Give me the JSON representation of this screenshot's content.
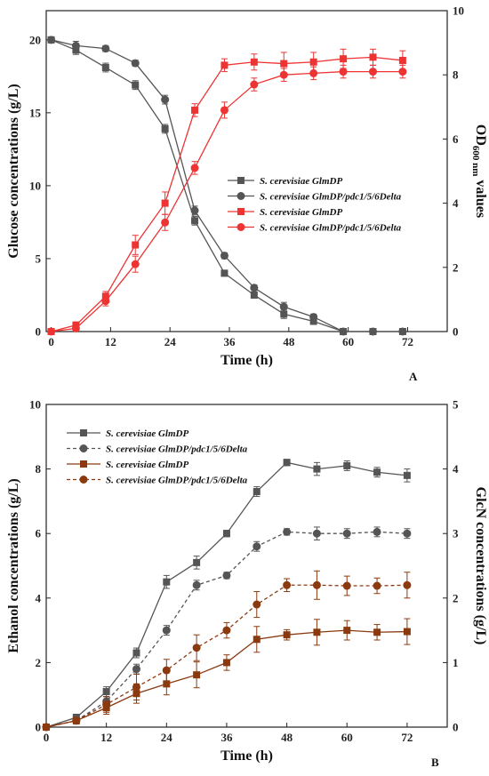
{
  "chart_data": [
    {
      "type": "line",
      "panel_label": "A",
      "xlabel": "Time (h)",
      "ylabel": "Glucose concentrations (g/L)",
      "y2label_pre": "OD",
      "y2label_sub": "600 nm",
      "y2label_post": " values",
      "xlim": [
        -1,
        80
      ],
      "ylim": [
        0,
        22
      ],
      "y2lim": [
        0,
        10
      ],
      "xticks": [
        0,
        12,
        24,
        36,
        48,
        60,
        72
      ],
      "yticks": [
        0,
        5,
        10,
        15,
        20
      ],
      "y2ticks": [
        0,
        2,
        4,
        6,
        8,
        10
      ],
      "legend_position": "center-right",
      "series": [
        {
          "name": "S. cerevisiae GlmDP",
          "axis": "left",
          "color": "#555555",
          "marker": "square",
          "dash": false,
          "x": [
            0,
            5,
            11,
            17,
            23,
            29,
            35,
            41,
            47,
            53,
            59,
            65,
            71
          ],
          "y": [
            20,
            19.3,
            18.1,
            16.9,
            13.9,
            7.6,
            4.0,
            2.5,
            1.2,
            0.7,
            0,
            0,
            0
          ],
          "err": [
            0.2,
            0.3,
            0.3,
            0.3,
            0.3,
            0.3,
            0.2,
            0.2,
            0.3,
            0.2,
            0,
            0,
            0
          ]
        },
        {
          "name": "S. cerevisiae GlmDP/pdc1/5/6Delta",
          "axis": "left",
          "color": "#555555",
          "marker": "circle",
          "dash": false,
          "x": [
            0,
            5,
            11,
            17,
            23,
            29,
            35,
            41,
            47,
            53,
            59,
            65,
            71
          ],
          "y": [
            20,
            19.6,
            19.4,
            18.4,
            15.9,
            8.3,
            5.2,
            3.0,
            1.7,
            1.0,
            0,
            0,
            0
          ],
          "err": [
            0.2,
            0.3,
            0.2,
            0.2,
            0.3,
            0.3,
            0.2,
            0.2,
            0.3,
            0.2,
            0,
            0,
            0
          ]
        },
        {
          "name": "S. cerevisiae GlmDP",
          "axis": "right",
          "color": "#ee3333",
          "marker": "square",
          "dash": false,
          "x": [
            0,
            5,
            11,
            17,
            23,
            29,
            35,
            41,
            47,
            53,
            59,
            65,
            71
          ],
          "y": [
            0,
            0.2,
            1.1,
            2.7,
            4.0,
            6.9,
            8.3,
            8.4,
            8.35,
            8.4,
            8.5,
            8.55,
            8.45
          ],
          "err": [
            0,
            0.1,
            0.15,
            0.3,
            0.35,
            0.2,
            0.2,
            0.25,
            0.35,
            0.3,
            0.3,
            0.25,
            0.3
          ]
        },
        {
          "name": "S. cerevisiae GlmDP/pdc1/5/6Delta",
          "axis": "right",
          "color": "#ee3333",
          "marker": "circle",
          "dash": false,
          "x": [
            0,
            5,
            11,
            17,
            23,
            29,
            35,
            41,
            47,
            53,
            59,
            65,
            71
          ],
          "y": [
            0,
            0.1,
            0.95,
            2.1,
            3.4,
            5.1,
            6.9,
            7.7,
            8.0,
            8.05,
            8.1,
            8.1,
            8.1
          ],
          "err": [
            0,
            0.05,
            0.15,
            0.25,
            0.25,
            0.2,
            0.25,
            0.2,
            0.2,
            0.2,
            0.2,
            0.2,
            0.2
          ]
        }
      ]
    },
    {
      "type": "line",
      "panel_label": "B",
      "xlabel": "Time (h)",
      "ylabel": "Ethanol concentrations (g/L)",
      "y2label": "GlcN concentrations (g/L)",
      "xlim": [
        0,
        80
      ],
      "ylim": [
        0,
        10
      ],
      "y2lim": [
        0,
        5
      ],
      "xticks": [
        0,
        12,
        24,
        36,
        48,
        60,
        72
      ],
      "yticks": [
        0,
        2,
        4,
        6,
        8,
        10
      ],
      "y2ticks": [
        0,
        1,
        2,
        3,
        4,
        5
      ],
      "legend_position": "top-left",
      "series": [
        {
          "name": "S. cerevisiae GlmDP",
          "axis": "left",
          "color": "#555555",
          "marker": "square",
          "dash": false,
          "x": [
            0,
            6,
            12,
            18,
            24,
            30,
            36,
            42,
            48,
            54,
            60,
            66,
            72
          ],
          "y": [
            0,
            0.3,
            1.1,
            2.3,
            4.5,
            5.1,
            6.0,
            7.3,
            8.2,
            8.0,
            8.1,
            7.9,
            7.8
          ],
          "err": [
            0,
            0.1,
            0.15,
            0.15,
            0.2,
            0.2,
            0.1,
            0.15,
            0.1,
            0.2,
            0.15,
            0.15,
            0.2
          ]
        },
        {
          "name": "S. cerevisiae GlmDP/pdc1/5/6Delta",
          "axis": "left",
          "color": "#555555",
          "marker": "circle",
          "dash": true,
          "x": [
            0,
            6,
            12,
            18,
            24,
            30,
            36,
            42,
            48,
            54,
            60,
            66,
            72
          ],
          "y": [
            0,
            0.2,
            0.8,
            1.8,
            3.0,
            4.4,
            4.7,
            5.6,
            6.05,
            6.0,
            6.0,
            6.05,
            6.0
          ],
          "err": [
            0,
            0.1,
            0.15,
            0.15,
            0.15,
            0.15,
            0.1,
            0.15,
            0.1,
            0.2,
            0.15,
            0.15,
            0.15
          ]
        },
        {
          "name": "S. cerevisiae GlmDP",
          "axis": "right",
          "color": "#8b3a10",
          "marker": "square",
          "dash": false,
          "x": [
            0,
            6,
            12,
            18,
            24,
            30,
            36,
            42,
            48,
            54,
            60,
            66,
            72
          ],
          "y": [
            0,
            0.1,
            0.3,
            0.52,
            0.67,
            0.81,
            1.0,
            1.36,
            1.43,
            1.47,
            1.5,
            1.47,
            1.48
          ],
          "err": [
            0,
            0.05,
            0.1,
            0.15,
            0.17,
            0.2,
            0.12,
            0.2,
            0.08,
            0.2,
            0.15,
            0.12,
            0.2
          ]
        },
        {
          "name": "S. cerevisiae GlmDP/pdc1/5/6Delta",
          "axis": "right",
          "color": "#8b3a10",
          "marker": "circle",
          "dash": true,
          "x": [
            0,
            6,
            12,
            18,
            24,
            30,
            36,
            42,
            48,
            54,
            60,
            66,
            72
          ],
          "y": [
            0,
            0.1,
            0.35,
            0.62,
            0.88,
            1.23,
            1.5,
            1.9,
            2.2,
            2.2,
            2.19,
            2.19,
            2.2
          ],
          "err": [
            0,
            0.05,
            0.12,
            0.2,
            0.17,
            0.2,
            0.12,
            0.2,
            0.1,
            0.22,
            0.15,
            0.12,
            0.2
          ]
        }
      ]
    }
  ]
}
